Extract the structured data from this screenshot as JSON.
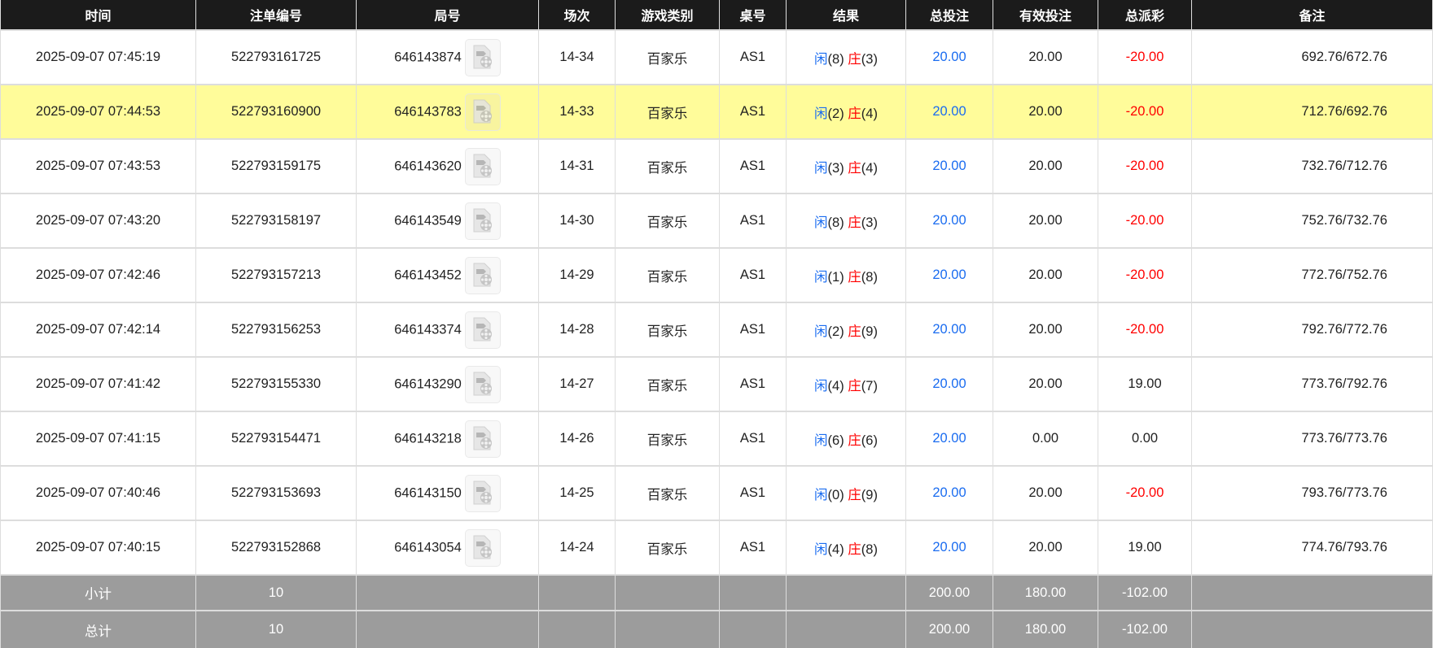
{
  "headers": [
    "时间",
    "注单编号",
    "局号",
    "场次",
    "游戏类别",
    "桌号",
    "结果",
    "总投注",
    "有效投注",
    "总派彩",
    "备注"
  ],
  "highlight_row_index": 1,
  "colors": {
    "header_bg": "#1b1b1b",
    "highlight": "#fffc9a",
    "footer_bg": "#9c9c9c",
    "player": "#1a6cf0",
    "banker": "#ff0000",
    "negative": "#ff0000"
  },
  "rows": [
    {
      "time": "2025-09-07 07:45:19",
      "bet_id": "522793161725",
      "round": "646143874",
      "shoe": "14-34",
      "game": "百家乐",
      "table": "AS1",
      "player_label": "闲",
      "player": "(8)",
      "banker_label": "庄",
      "banker": "(3)",
      "total_bet": "20.00",
      "valid_bet": "20.00",
      "payout": "-20.00",
      "remark": "692.76/672.76"
    },
    {
      "time": "2025-09-07 07:44:53",
      "bet_id": "522793160900",
      "round": "646143783",
      "shoe": "14-33",
      "game": "百家乐",
      "table": "AS1",
      "player_label": "闲",
      "player": "(2)",
      "banker_label": "庄",
      "banker": "(4)",
      "total_bet": "20.00",
      "valid_bet": "20.00",
      "payout": "-20.00",
      "remark": "712.76/692.76"
    },
    {
      "time": "2025-09-07 07:43:53",
      "bet_id": "522793159175",
      "round": "646143620",
      "shoe": "14-31",
      "game": "百家乐",
      "table": "AS1",
      "player_label": "闲",
      "player": "(3)",
      "banker_label": "庄",
      "banker": "(4)",
      "total_bet": "20.00",
      "valid_bet": "20.00",
      "payout": "-20.00",
      "remark": "732.76/712.76"
    },
    {
      "time": "2025-09-07 07:43:20",
      "bet_id": "522793158197",
      "round": "646143549",
      "shoe": "14-30",
      "game": "百家乐",
      "table": "AS1",
      "player_label": "闲",
      "player": "(8)",
      "banker_label": "庄",
      "banker": "(3)",
      "total_bet": "20.00",
      "valid_bet": "20.00",
      "payout": "-20.00",
      "remark": "752.76/732.76"
    },
    {
      "time": "2025-09-07 07:42:46",
      "bet_id": "522793157213",
      "round": "646143452",
      "shoe": "14-29",
      "game": "百家乐",
      "table": "AS1",
      "player_label": "闲",
      "player": "(1)",
      "banker_label": "庄",
      "banker": "(8)",
      "total_bet": "20.00",
      "valid_bet": "20.00",
      "payout": "-20.00",
      "remark": "772.76/752.76"
    },
    {
      "time": "2025-09-07 07:42:14",
      "bet_id": "522793156253",
      "round": "646143374",
      "shoe": "14-28",
      "game": "百家乐",
      "table": "AS1",
      "player_label": "闲",
      "player": "(2)",
      "banker_label": "庄",
      "banker": "(9)",
      "total_bet": "20.00",
      "valid_bet": "20.00",
      "payout": "-20.00",
      "remark": "792.76/772.76"
    },
    {
      "time": "2025-09-07 07:41:42",
      "bet_id": "522793155330",
      "round": "646143290",
      "shoe": "14-27",
      "game": "百家乐",
      "table": "AS1",
      "player_label": "闲",
      "player": "(4)",
      "banker_label": "庄",
      "banker": "(7)",
      "total_bet": "20.00",
      "valid_bet": "20.00",
      "payout": "19.00",
      "remark": "773.76/792.76"
    },
    {
      "time": "2025-09-07 07:41:15",
      "bet_id": "522793154471",
      "round": "646143218",
      "shoe": "14-26",
      "game": "百家乐",
      "table": "AS1",
      "player_label": "闲",
      "player": "(6)",
      "banker_label": "庄",
      "banker": "(6)",
      "total_bet": "20.00",
      "valid_bet": "0.00",
      "payout": "0.00",
      "remark": "773.76/773.76"
    },
    {
      "time": "2025-09-07 07:40:46",
      "bet_id": "522793153693",
      "round": "646143150",
      "shoe": "14-25",
      "game": "百家乐",
      "table": "AS1",
      "player_label": "闲",
      "player": "(0)",
      "banker_label": "庄",
      "banker": "(9)",
      "total_bet": "20.00",
      "valid_bet": "20.00",
      "payout": "-20.00",
      "remark": "793.76/773.76"
    },
    {
      "time": "2025-09-07 07:40:15",
      "bet_id": "522793152868",
      "round": "646143054",
      "shoe": "14-24",
      "game": "百家乐",
      "table": "AS1",
      "player_label": "闲",
      "player": "(4)",
      "banker_label": "庄",
      "banker": "(8)",
      "total_bet": "20.00",
      "valid_bet": "20.00",
      "payout": "19.00",
      "remark": "774.76/793.76"
    }
  ],
  "subtotal": {
    "label": "小计",
    "count": "10",
    "total_bet": "200.00",
    "valid_bet": "180.00",
    "payout": "-102.00"
  },
  "total": {
    "label": "总计",
    "count": "10",
    "total_bet": "200.00",
    "valid_bet": "180.00",
    "payout": "-102.00"
  }
}
